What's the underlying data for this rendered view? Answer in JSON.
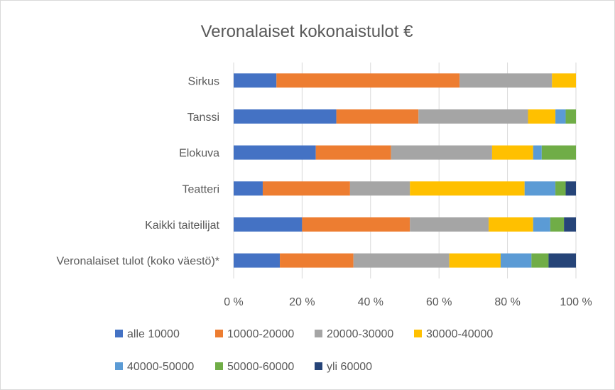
{
  "chart_data": {
    "type": "bar",
    "orientation": "horizontal",
    "stacked": "percent",
    "title": "Veronalaiset kokonaistulot €",
    "categories": [
      "Sirkus",
      "Tanssi",
      "Elokuva",
      "Teatteri",
      "Kaikki taiteilijat",
      "Veronalaiset tulot (koko väestö)*"
    ],
    "series": [
      {
        "name": "alle 10000",
        "color": "#4472c4",
        "values": [
          12.5,
          30,
          24,
          8.5,
          20,
          13.5
        ]
      },
      {
        "name": "10000-20000",
        "color": "#ed7d31",
        "values": [
          53.5,
          24,
          22,
          25.5,
          31.5,
          21.5
        ]
      },
      {
        "name": "20000-30000",
        "color": "#a5a5a5",
        "values": [
          27,
          32,
          29.5,
          17.5,
          23,
          28
        ]
      },
      {
        "name": "30000-40000",
        "color": "#ffc000",
        "values": [
          7,
          8,
          12,
          33.5,
          13,
          15
        ]
      },
      {
        "name": "40000-50000",
        "color": "#5b9bd5",
        "values": [
          0,
          3,
          2.5,
          9,
          5,
          9
        ]
      },
      {
        "name": "50000-60000",
        "color": "#70ad47",
        "values": [
          0,
          3,
          10,
          3,
          4,
          5
        ]
      },
      {
        "name": "yli 60000",
        "color": "#264478",
        "values": [
          0,
          0,
          0,
          3,
          3.5,
          8
        ]
      }
    ],
    "x_ticks": [
      "0 %",
      "20 %",
      "40 %",
      "60 %",
      "80 %",
      "100 %"
    ],
    "xlim": [
      0,
      100
    ],
    "grid": true,
    "legend_position": "bottom"
  }
}
